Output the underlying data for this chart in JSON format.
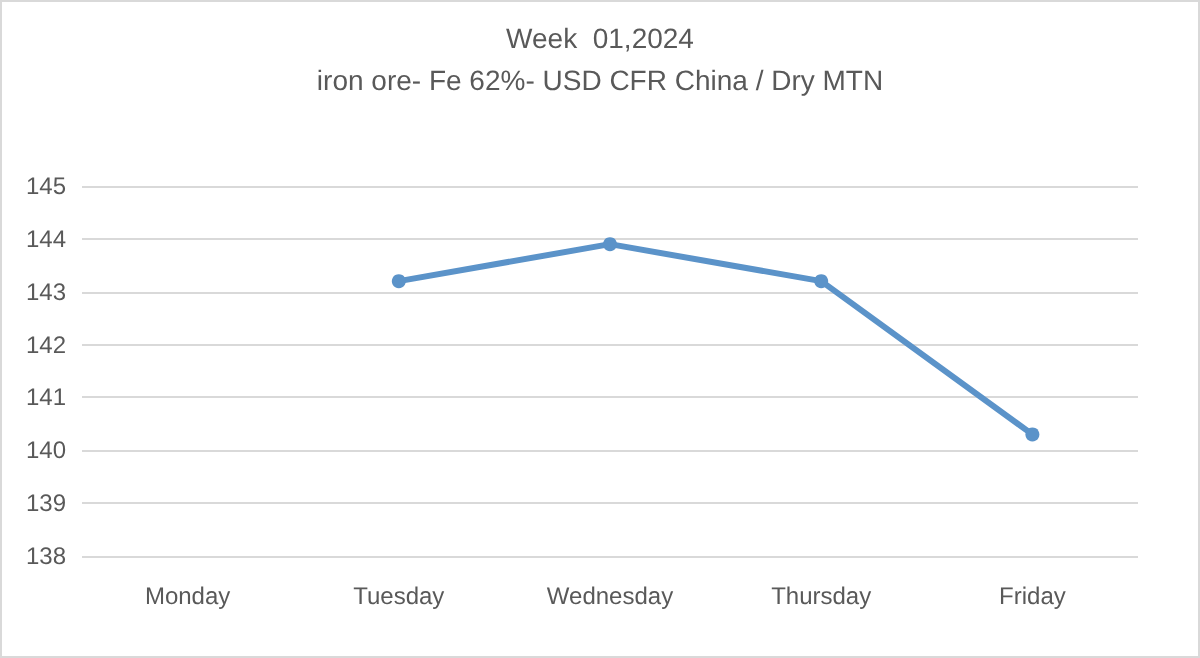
{
  "chart_data": {
    "type": "line",
    "title": "Week  01,2024",
    "subtitle": "iron ore- Fe 62%- USD CFR China / Dry MTN",
    "categories": [
      "Monday",
      "Tuesday",
      "Wednesday",
      "Thursday",
      "Friday"
    ],
    "series": [
      {
        "color": "#5b93c9",
        "values": [
          null,
          143.2,
          143.9,
          143.2,
          140.3
        ]
      }
    ],
    "ylim": [
      138,
      145
    ],
    "yticks": [
      138,
      139,
      140,
      141,
      142,
      143,
      144,
      145
    ],
    "grid": "y",
    "marker": "circle",
    "line_style": "solid"
  }
}
